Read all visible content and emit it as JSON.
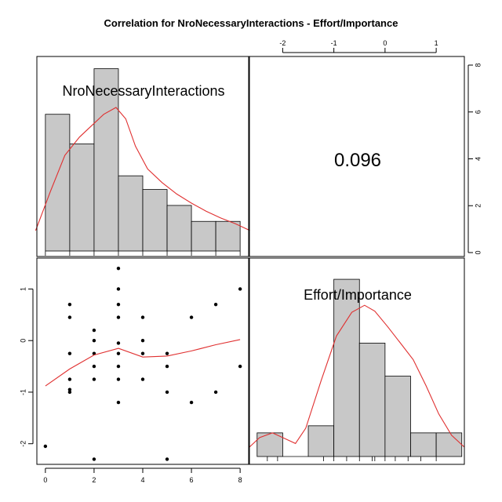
{
  "chart_data": {
    "type": "scatter",
    "title": "Correlation  for NroNecessaryInteractions - Effort/Importance",
    "variables": [
      "NroNecessaryInteractions",
      "Effort/Importance"
    ],
    "correlation_label": "0.096",
    "panel_colors": {
      "bar_fill": "#c8c8c8",
      "curve": "#e03030",
      "points": "#000000"
    },
    "top_axis": {
      "ticks": [
        -2,
        -1,
        0,
        1
      ],
      "labels": [
        "-2",
        "-1",
        "0",
        "1"
      ],
      "range": [
        -2.65,
        1.55
      ]
    },
    "right_axis": {
      "ticks": [
        0,
        2,
        4,
        6,
        8
      ],
      "labels": [
        "0",
        "2",
        "4",
        "6",
        "8"
      ],
      "range": [
        0,
        8.1
      ]
    },
    "left_axis": {
      "ticks": [
        -2,
        -1,
        0,
        1
      ],
      "labels": [
        "-2",
        "-1",
        "0",
        "1"
      ],
      "range": [
        -2.4,
        1.6
      ]
    },
    "bottom_axis": {
      "ticks": [
        0,
        2,
        4,
        6,
        8
      ],
      "labels": [
        "0",
        "2",
        "4",
        "6",
        "8"
      ],
      "range": [
        -0.35,
        8.35
      ]
    },
    "hist_x": {
      "edges": [
        0,
        1,
        2,
        3,
        4,
        5,
        6,
        7,
        8
      ],
      "counts": [
        6,
        4.7,
        8,
        3.3,
        2.7,
        2,
        1.3,
        1.3
      ],
      "ylim": [
        0,
        8.4
      ],
      "density": [
        [
          -0.4,
          0.9
        ],
        [
          0.2,
          2.6
        ],
        [
          0.8,
          4.2
        ],
        [
          1.4,
          5.0
        ],
        [
          2.0,
          5.6
        ],
        [
          2.4,
          6.0
        ],
        [
          2.9,
          6.3
        ],
        [
          3.3,
          5.8
        ],
        [
          3.7,
          4.6
        ],
        [
          4.2,
          3.6
        ],
        [
          4.8,
          3.0
        ],
        [
          5.4,
          2.5
        ],
        [
          6.0,
          2.1
        ],
        [
          6.6,
          1.75
        ],
        [
          7.2,
          1.45
        ],
        [
          7.8,
          1.2
        ],
        [
          8.4,
          0.9
        ]
      ]
    },
    "hist_y": {
      "edges": [
        -2.5,
        -2.0,
        -1.5,
        -1.0,
        -0.5,
        0,
        0.5,
        1.0,
        1.5
      ],
      "counts": [
        1,
        0,
        1.3,
        7.5,
        4.8,
        3.4,
        1,
        1
      ],
      "ylim": [
        0,
        8.1
      ],
      "density": [
        [
          -2.65,
          0.4
        ],
        [
          -2.45,
          0.8
        ],
        [
          -2.2,
          1.0
        ],
        [
          -1.95,
          0.75
        ],
        [
          -1.75,
          0.55
        ],
        [
          -1.55,
          1.2
        ],
        [
          -1.25,
          3.2
        ],
        [
          -0.95,
          5.1
        ],
        [
          -0.65,
          6.1
        ],
        [
          -0.4,
          6.4
        ],
        [
          -0.2,
          6.15
        ],
        [
          0.05,
          5.5
        ],
        [
          0.3,
          4.8
        ],
        [
          0.55,
          4.1
        ],
        [
          0.8,
          3.0
        ],
        [
          1.05,
          1.8
        ],
        [
          1.3,
          0.9
        ],
        [
          1.55,
          0.4
        ]
      ]
    },
    "rug_x": [
      0,
      1,
      2,
      3,
      4,
      5,
      6,
      7,
      8
    ],
    "rug_y": [
      -2.3,
      -2.1,
      -1.2,
      -1.0,
      -0.75,
      -0.5,
      -0.25,
      -0.2,
      0,
      0.2,
      0.45,
      0.7,
      1.0
    ],
    "points": [
      [
        0,
        -2.05
      ],
      [
        1,
        0.7
      ],
      [
        1,
        0.45
      ],
      [
        1,
        -0.25
      ],
      [
        1,
        -0.75
      ],
      [
        1,
        -1.0
      ],
      [
        1,
        -0.95
      ],
      [
        2,
        0.2
      ],
      [
        2,
        0
      ],
      [
        2,
        -0.25
      ],
      [
        2,
        -0.5
      ],
      [
        2,
        -0.75
      ],
      [
        2,
        -2.3
      ],
      [
        3,
        1.4
      ],
      [
        3,
        1.0
      ],
      [
        3,
        0.7
      ],
      [
        3,
        0.45
      ],
      [
        3,
        -0.05
      ],
      [
        3,
        -0.25
      ],
      [
        3,
        -0.5
      ],
      [
        3,
        -0.75
      ],
      [
        3,
        -1.2
      ],
      [
        4,
        0.45
      ],
      [
        4,
        0
      ],
      [
        4,
        -0.25
      ],
      [
        4,
        -0.75
      ],
      [
        5,
        -0.25
      ],
      [
        5,
        -0.5
      ],
      [
        5,
        -1.0
      ],
      [
        5,
        -2.3
      ],
      [
        6,
        0.45
      ],
      [
        6,
        -1.2
      ],
      [
        7,
        0.7
      ],
      [
        7,
        -1.0
      ],
      [
        8,
        1.0
      ],
      [
        8,
        -0.5
      ]
    ],
    "smooth": [
      [
        0,
        -0.88
      ],
      [
        1,
        -0.55
      ],
      [
        2,
        -0.28
      ],
      [
        3,
        -0.15
      ],
      [
        4,
        -0.32
      ],
      [
        5,
        -0.3
      ],
      [
        6,
        -0.2
      ],
      [
        7,
        -0.08
      ],
      [
        8,
        0.02
      ]
    ]
  }
}
